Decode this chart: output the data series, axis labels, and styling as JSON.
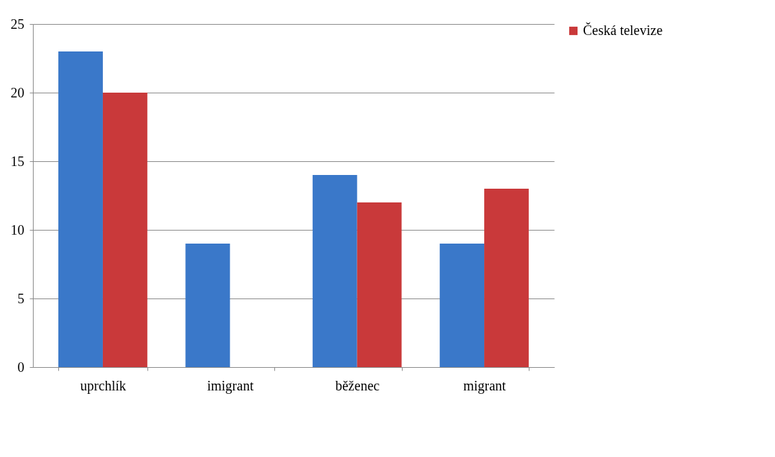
{
  "chart_data": {
    "type": "bar",
    "categories": [
      "uprchlík",
      "imigrant",
      "běženec",
      "migrant"
    ],
    "series": [
      {
        "color": "#3a78c9",
        "values": [
          23,
          9,
          14,
          9
        ]
      },
      {
        "name": "Česká televize",
        "color": "#c9393a",
        "values": [
          20,
          0,
          12,
          13
        ]
      }
    ],
    "ylim": [
      0,
      25
    ],
    "yticks": [
      0,
      5,
      10,
      15,
      20,
      25
    ],
    "grid": "y",
    "legend": "right"
  }
}
